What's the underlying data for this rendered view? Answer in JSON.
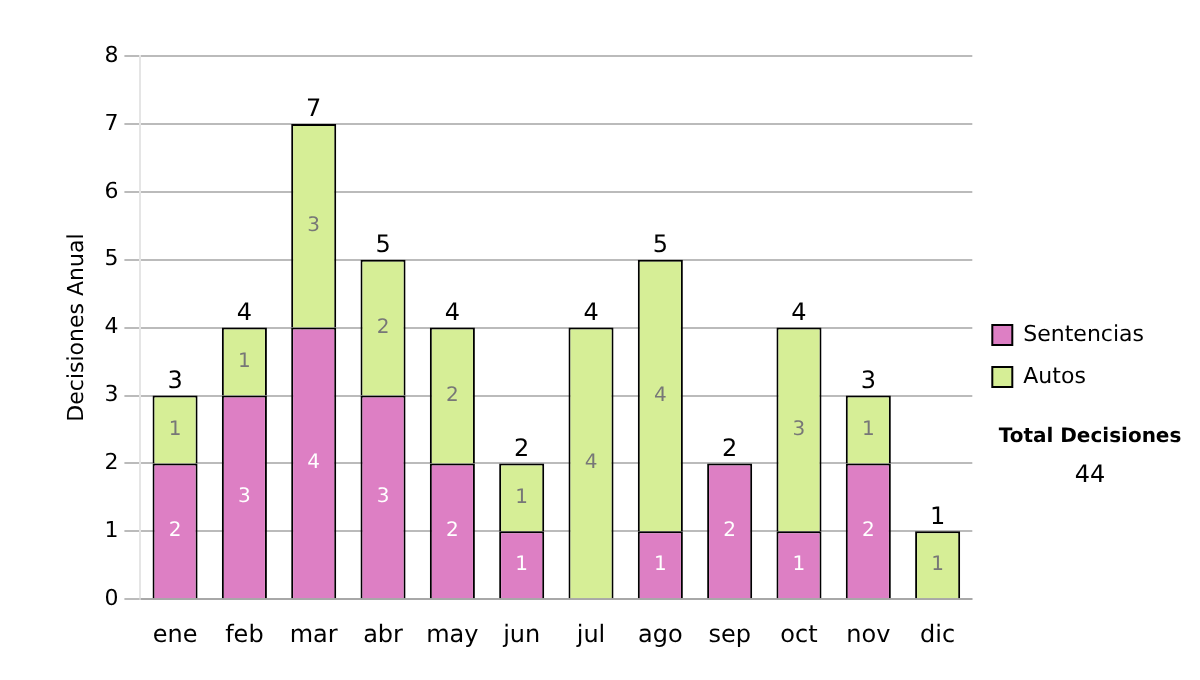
{
  "chart_data": {
    "type": "bar",
    "stacked": true,
    "ylabel": "Decisiones Anual",
    "categories": [
      "ene",
      "feb",
      "mar",
      "abr",
      "may",
      "jun",
      "jul",
      "ago",
      "sep",
      "oct",
      "nov",
      "dic"
    ],
    "series": [
      {
        "name": "Sentencias",
        "color": "#dd7fc4",
        "values": [
          2,
          3,
          4,
          3,
          2,
          1,
          0,
          1,
          2,
          1,
          2,
          0
        ],
        "value_labels": [
          "2",
          "3",
          "4",
          "3",
          "2",
          "1",
          null,
          "1",
          "2",
          "1",
          "2",
          null
        ]
      },
      {
        "name": "Autos",
        "color": "#d6ee96",
        "values": [
          1,
          1,
          3,
          2,
          2,
          1,
          4,
          4,
          0,
          3,
          1,
          1
        ],
        "value_labels": [
          "1",
          "1",
          "3",
          "2",
          "2",
          "1",
          "4",
          "4",
          null,
          "3",
          "1",
          "1"
        ]
      }
    ],
    "totals": [
      "3",
      "4",
      "7",
      "5",
      "4",
      "2",
      "4",
      "5",
      "2",
      "4",
      "3",
      "1"
    ],
    "ylim": [
      0,
      8
    ],
    "yticks": [
      0,
      1,
      2,
      3,
      4,
      5,
      6,
      7,
      8
    ],
    "grid": "y",
    "legend": "right",
    "annotations": [
      "Total Decisiones",
      "44"
    ]
  }
}
